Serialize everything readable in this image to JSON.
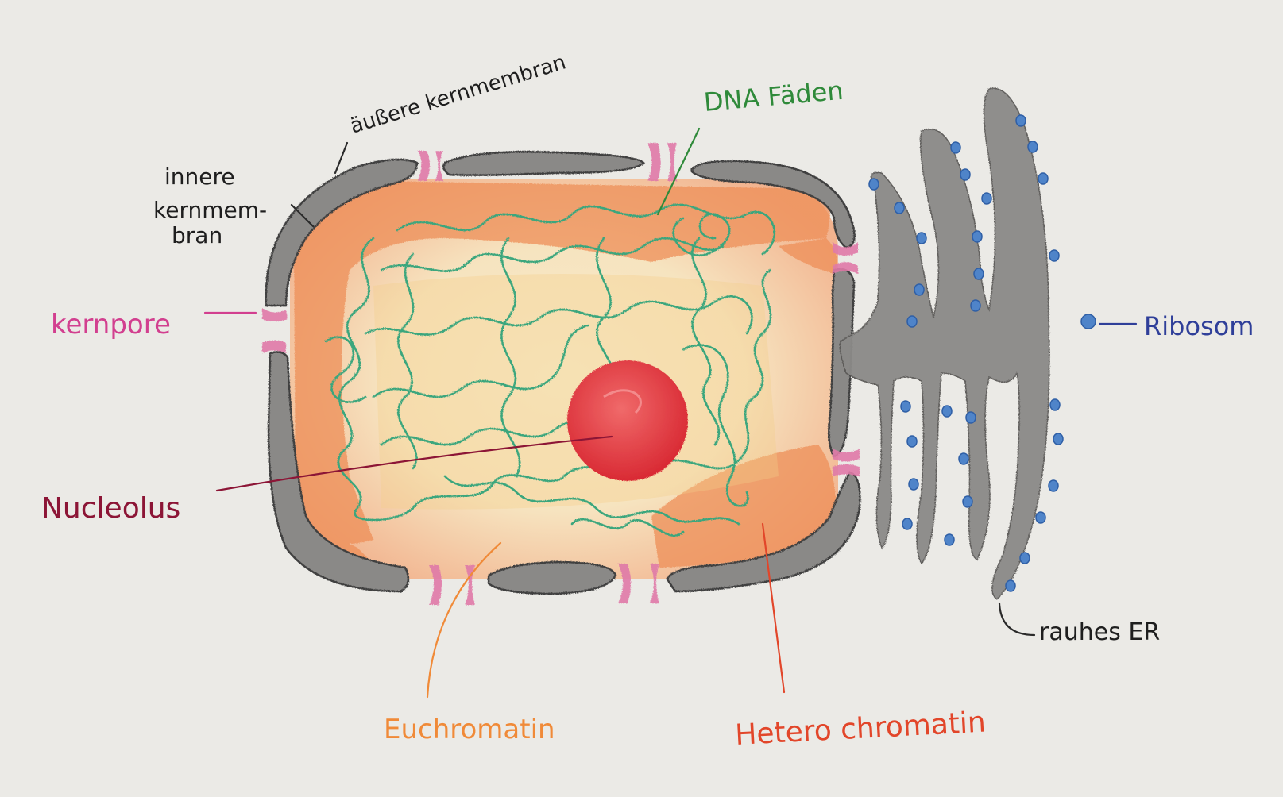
{
  "diagram": {
    "labels": {
      "outer_membrane": "äußere kernmembran",
      "inner_membrane_1": "innere",
      "inner_membrane_2": "kernmem-",
      "inner_membrane_3": "bran",
      "dna": "DNA Fäden",
      "pore": "kernpore",
      "ribosome": "Ribosom",
      "nucleolus": "Nucleolus",
      "euchromatin": "Euchromatin",
      "heterochromatin": "Hetero chromatin",
      "rough_er": "rauhes ER"
    },
    "colors": {
      "paper": "#e9e8e4",
      "membrane": "#8a8987",
      "pore": "#e07aa8",
      "heterochromatin": "#ee8f58",
      "euchromatin": "#f6e2b5",
      "dna_thread": "#3aa67d",
      "nucleolus": "#e43a42",
      "ribosome": "#4f84c9",
      "er": "#8b8a88",
      "label_black": "#1e1e1e",
      "label_green": "#2f8a3a",
      "label_pink": "#d23f8f",
      "label_blue": "#2f3f99",
      "label_maroon": "#8c1536",
      "label_orange": "#f08a38",
      "label_red": "#e2462a"
    }
  }
}
